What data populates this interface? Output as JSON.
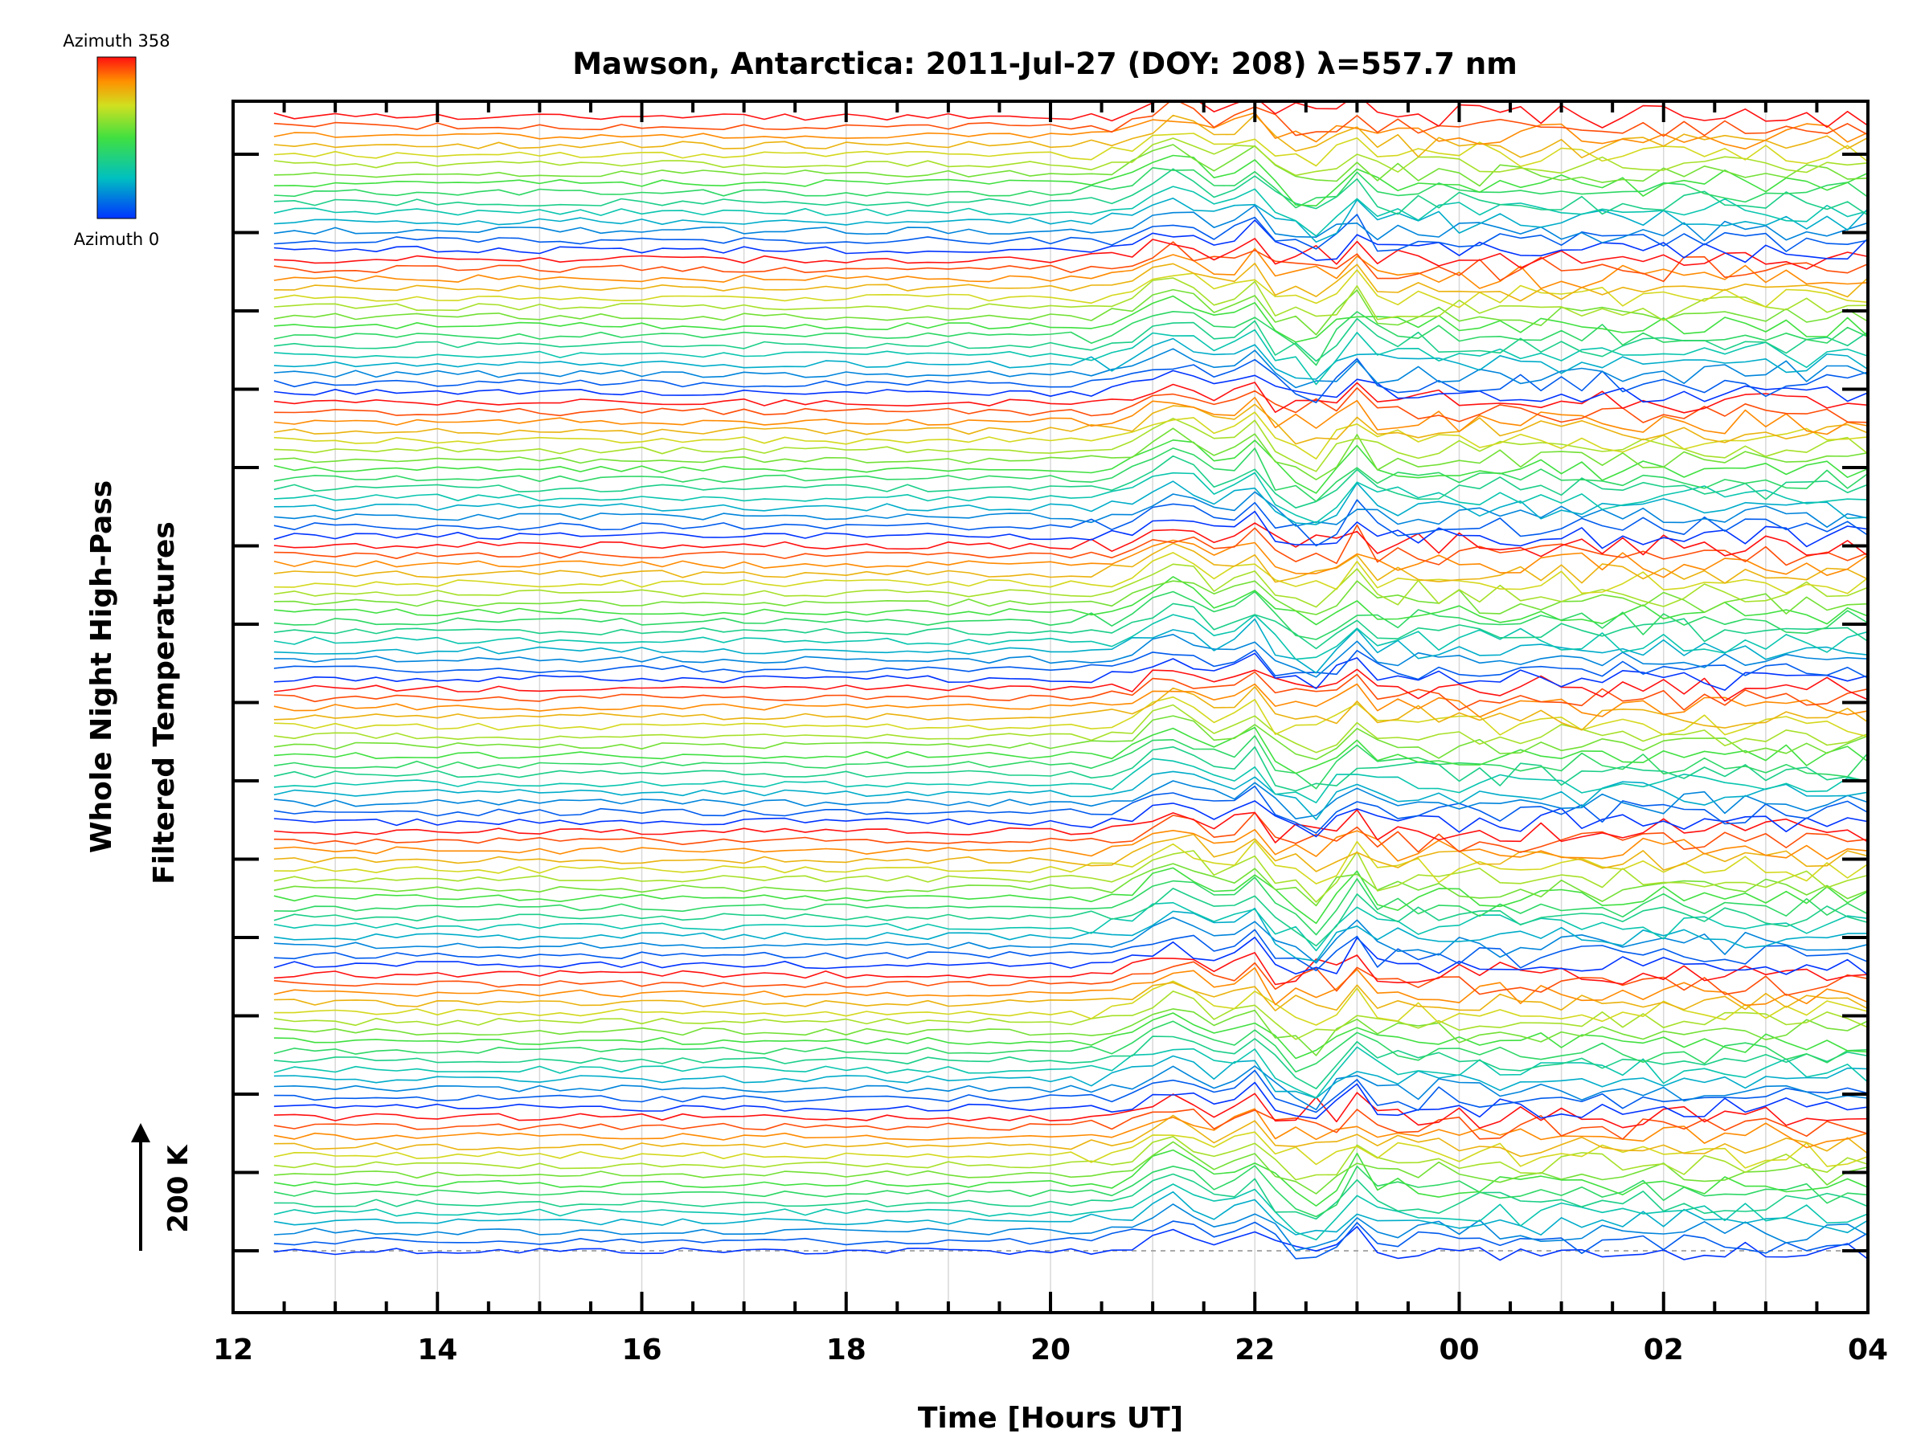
{
  "chart_data": {
    "type": "line",
    "title": "Mawson, Antarctica: 2011-Jul-27 (DOY: 208) λ=557.7 nm",
    "xlabel": "Time [Hours UT]",
    "ylabel_line1": "Whole Night High-Pass",
    "ylabel_line2": "Filtered Temperatures",
    "x_ticks": [
      {
        "label": "12",
        "hour": 12
      },
      {
        "label": "14",
        "hour": 14
      },
      {
        "label": "16",
        "hour": 16
      },
      {
        "label": "18",
        "hour": 18
      },
      {
        "label": "20",
        "hour": 20
      },
      {
        "label": "22",
        "hour": 22
      },
      {
        "label": "00",
        "hour": 24
      },
      {
        "label": "02",
        "hour": 26
      },
      {
        "label": "04",
        "hour": 28
      }
    ],
    "xlim": [
      12,
      28
    ],
    "scale_bar_label": "200 K",
    "colorbar": {
      "top_label": "Azimuth 358",
      "bottom_label": "Azimuth 0",
      "range": [
        0,
        358
      ]
    },
    "traces": {
      "count": 120,
      "zones": 8,
      "start_hour": 12.4,
      "end_hour": 28.0,
      "disturbance_times_hours": [
        21.2,
        21.9,
        22.5,
        23.0
      ]
    },
    "series_note": "120 stacked high-pass filtered temperature traces, one per azimuth bin, colored by azimuth; traces are offset vertically and form 8 repeating azimuth zones."
  }
}
